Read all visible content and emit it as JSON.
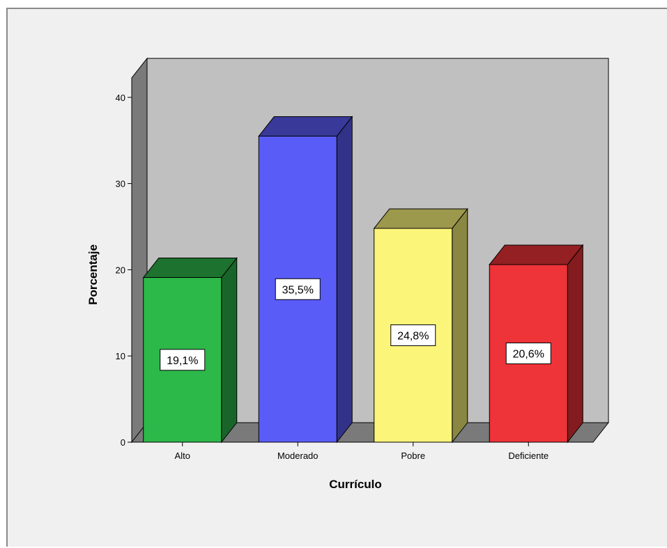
{
  "chart_data": {
    "type": "bar",
    "categories": [
      "Alto",
      "Moderado",
      "Pobre",
      "Deficiente"
    ],
    "values": [
      19.1,
      35.5,
      24.8,
      20.6
    ],
    "data_labels": [
      "19,1%",
      "35,5%",
      "24,8%",
      "20,6%"
    ],
    "xlabel": "Currículo",
    "ylabel": "Porcentaje",
    "ylim": [
      0,
      40
    ],
    "yticks": [
      "0",
      "10",
      "20",
      "30",
      "40"
    ],
    "colors": [
      "#2db84a",
      "#5a5cf7",
      "#fbf57a",
      "#ee3339"
    ],
    "grid": false,
    "style": "3d"
  }
}
